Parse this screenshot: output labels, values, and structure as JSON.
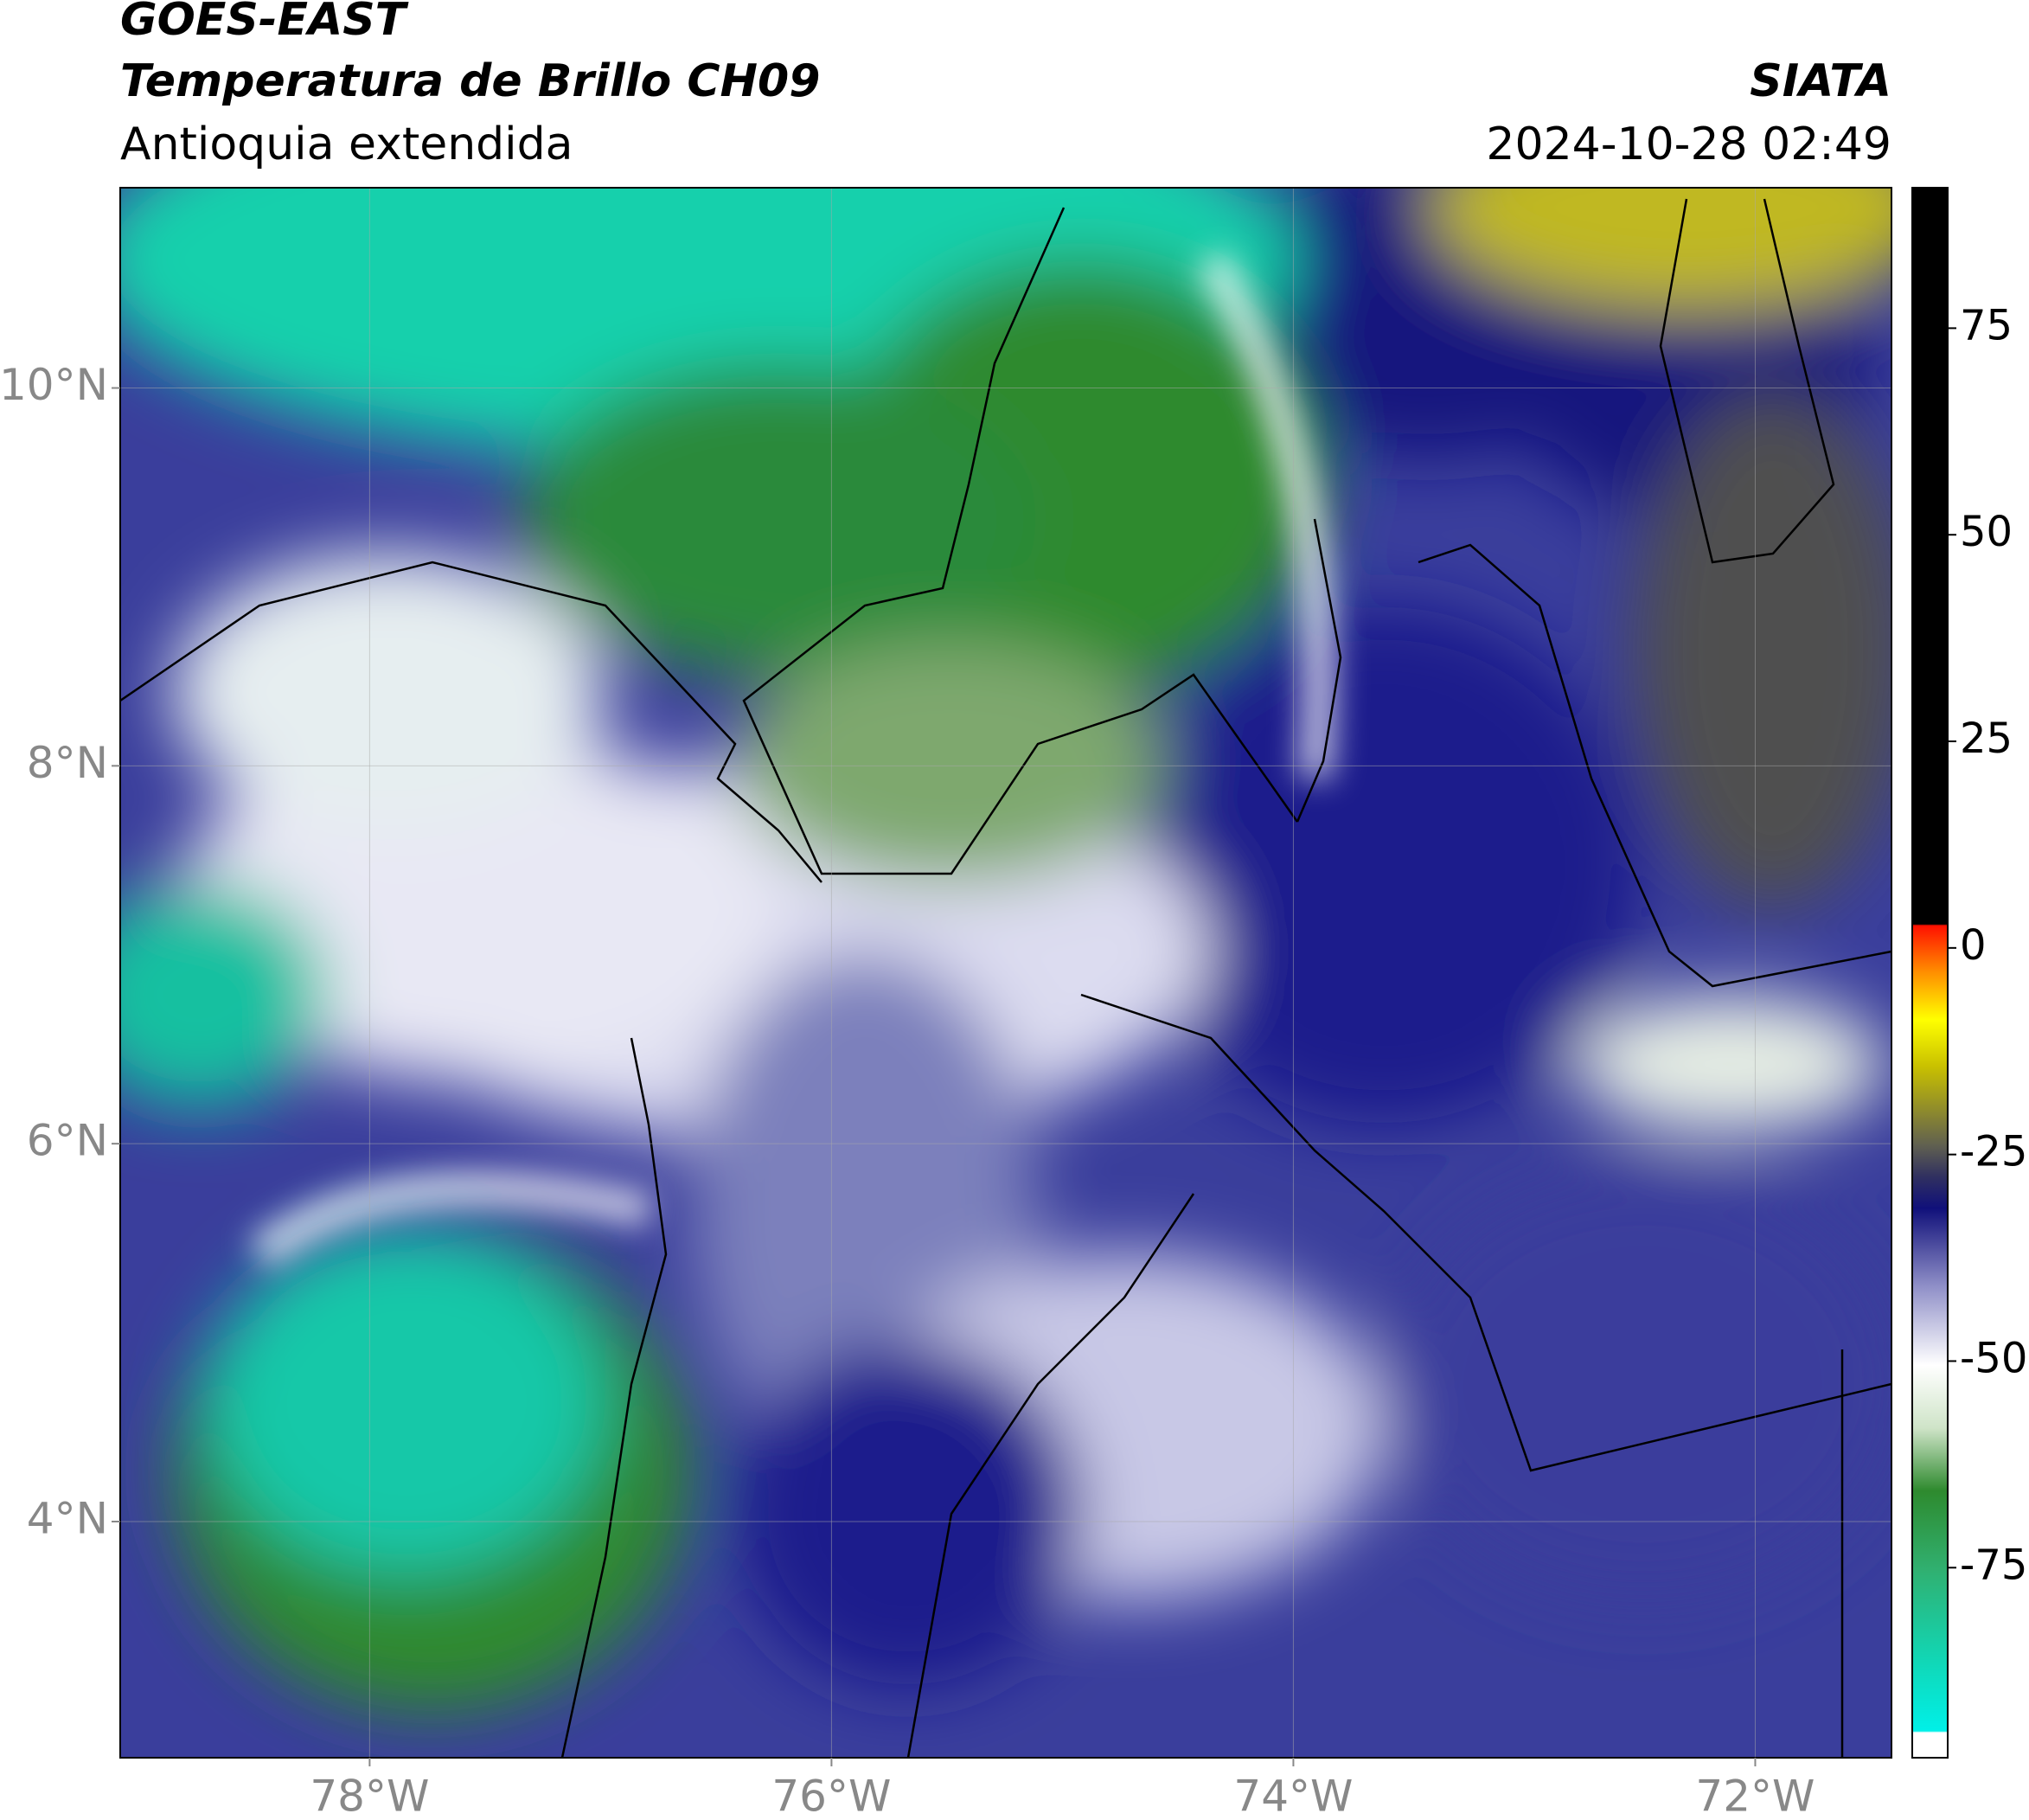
{
  "chart_data": {
    "type": "map",
    "title": "GOES-EAST",
    "subtitle": "Temperatura de Brillo CH09",
    "region": "Antioquia extendida",
    "source": "SIATA",
    "timestamp": "2024-10-28 02:49",
    "xlim": [
      -79.08,
      -71.41
    ],
    "ylim": [
      2.75,
      11.06
    ],
    "xticks": [
      {
        "value": -78,
        "label": "78°W"
      },
      {
        "value": -76,
        "label": "76°W"
      },
      {
        "value": -74,
        "label": "74°W"
      },
      {
        "value": -72,
        "label": "72°W"
      }
    ],
    "yticks": [
      {
        "value": 4,
        "label": "4°N"
      },
      {
        "value": 6,
        "label": "6°N"
      },
      {
        "value": 8,
        "label": "8°N"
      },
      {
        "value": 10,
        "label": "10°N"
      }
    ],
    "grid": true,
    "colorbar": {
      "clim": [
        -98,
        92
      ],
      "ticks": [
        -75,
        -50,
        -25,
        0,
        25,
        50,
        75
      ]
    }
  }
}
